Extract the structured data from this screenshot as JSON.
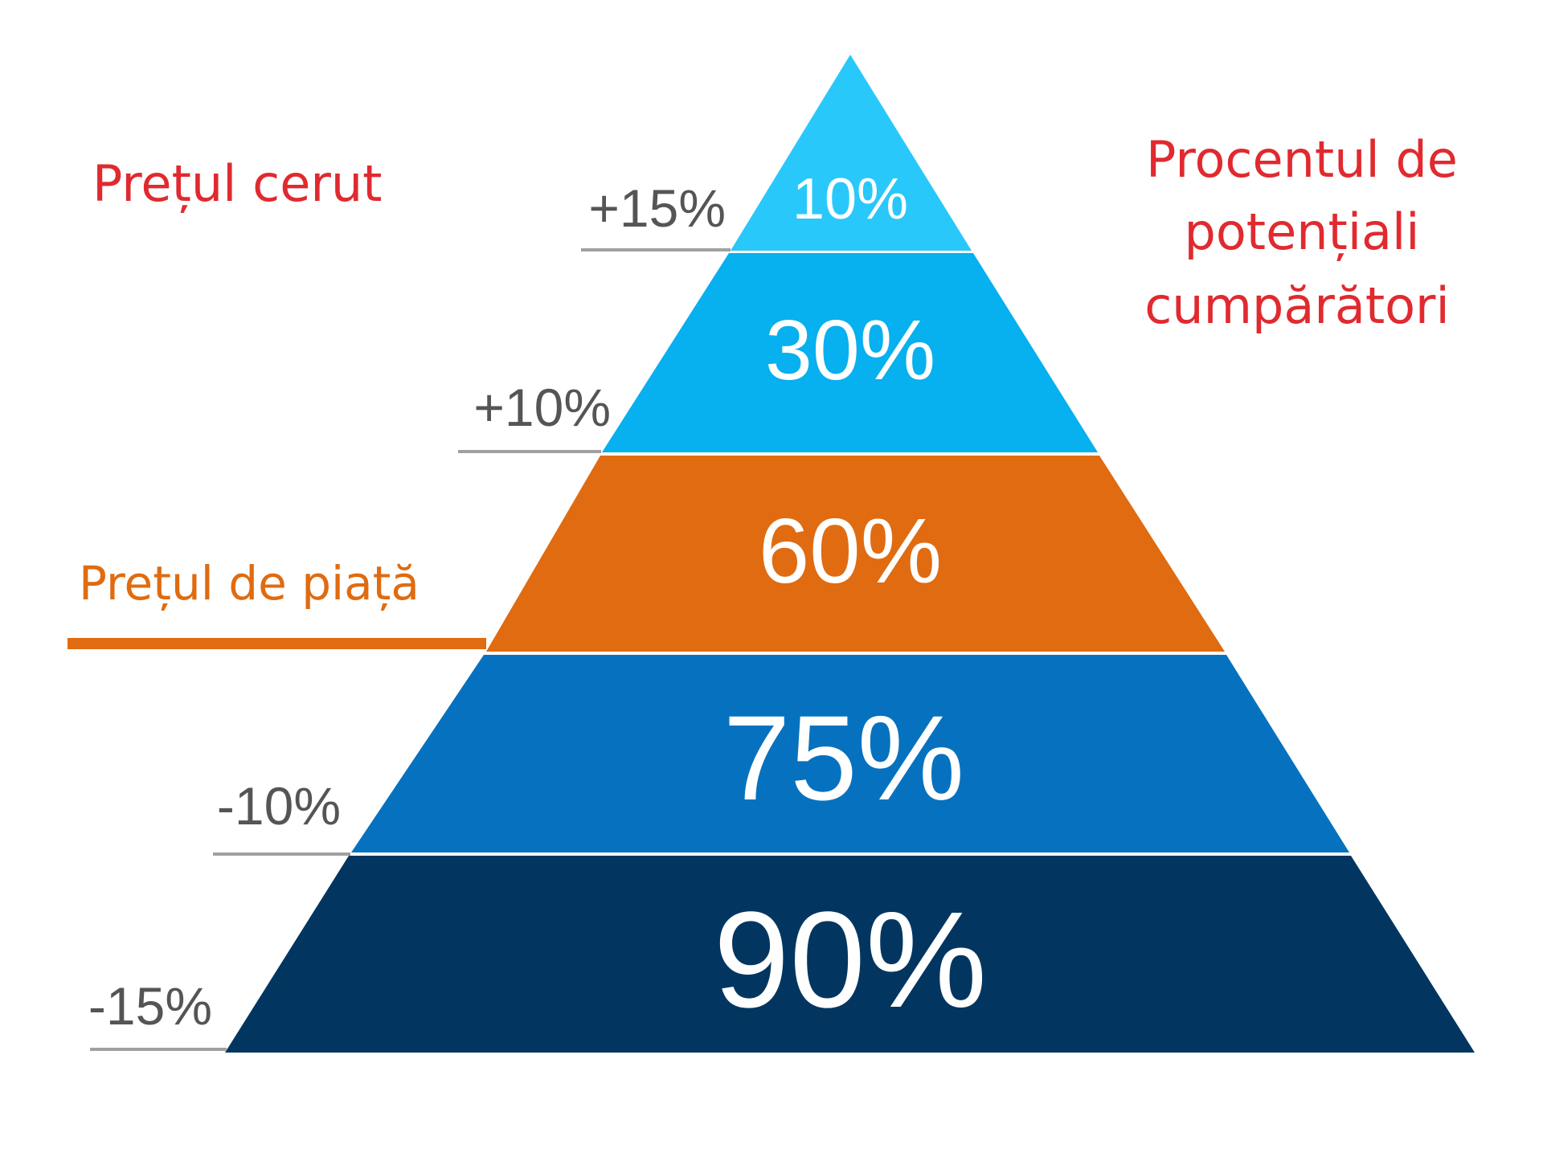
{
  "headings": {
    "asking_price": "Prețul cerut",
    "market_price": "Prețul de piață",
    "buyers_percent_line1": "Procentul de",
    "buyers_percent_line2": "potențiali",
    "buyers_percent_line3": "cumpărători"
  },
  "colors": {
    "heading_red": "#e02a2f",
    "market_orange": "#e06b10",
    "price_gray": "#555555",
    "level_line_gray": "#a0a0a0"
  },
  "tiers": [
    {
      "percent": "10%",
      "price_change": "+15%",
      "color": "#29c8fb"
    },
    {
      "percent": "30%",
      "price_change": "+10%",
      "color": "#07b0ef"
    },
    {
      "percent": "60%",
      "price_change": "",
      "color": "#e06b10"
    },
    {
      "percent": "75%",
      "price_change": "-10%",
      "color": "#0672bf"
    },
    {
      "percent": "90%",
      "price_change": "-15%",
      "color": "#023660"
    }
  ]
}
